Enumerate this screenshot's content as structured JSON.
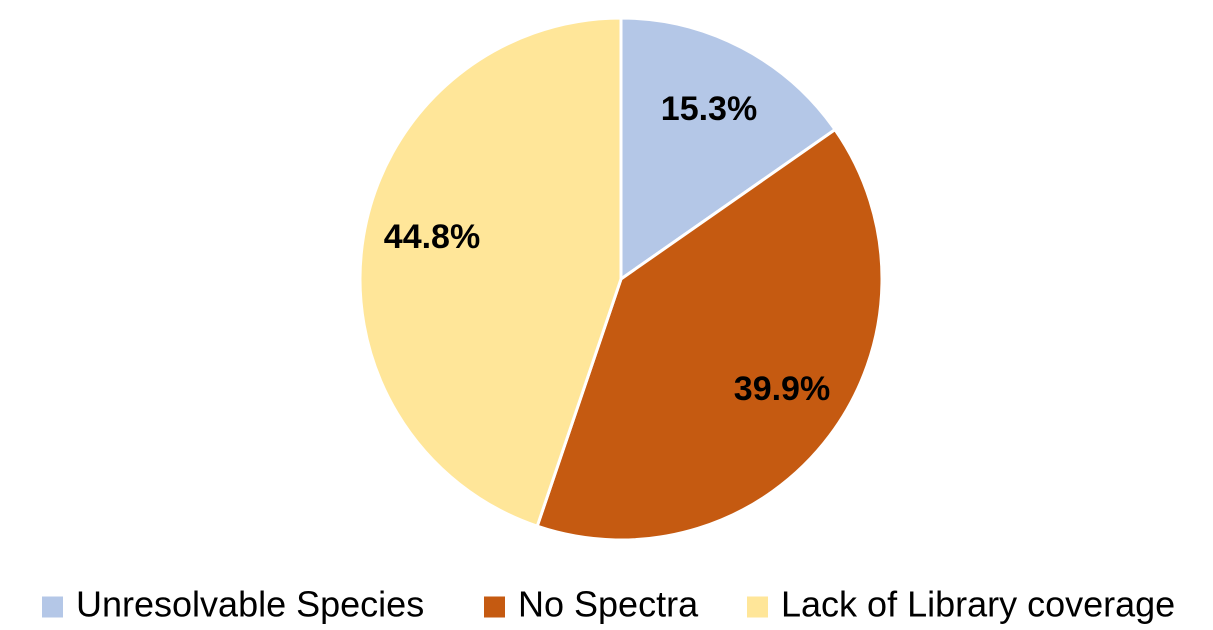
{
  "chart_data": {
    "type": "pie",
    "title": "",
    "slices": [
      {
        "name": "Unresolvable Species",
        "value": 15.3,
        "label": "15.3%",
        "color": "#b4c7e7"
      },
      {
        "name": "No Spectra",
        "value": 39.9,
        "label": "39.9%",
        "color": "#c55a11"
      },
      {
        "name": "Lack of Library coverage",
        "value": 44.8,
        "label": "44.8%",
        "color": "#ffe699"
      }
    ],
    "start_angle_deg": 0,
    "direction": "clockwise",
    "slice_border_color": "#ffffff",
    "legend": {
      "placement": "bottom",
      "entries": [
        "Unresolvable Species",
        "No Spectra",
        "Lack of Library coverage"
      ]
    }
  }
}
